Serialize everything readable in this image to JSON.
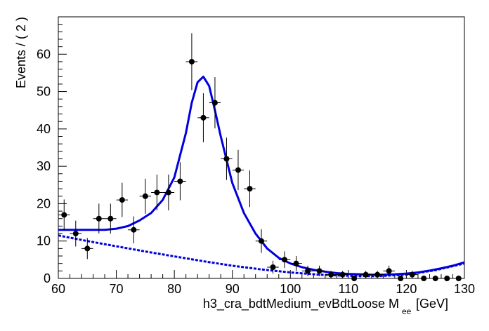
{
  "chart_data": {
    "type": "scatter",
    "title": "",
    "xlabel_main": "h3_cra_bdtMedium_evBdtLoose  M",
    "xlabel_subscript": "ee",
    "xlabel_unit": "[GeV]",
    "ylabel": "Events / ( 2 )",
    "xlim": [
      60,
      130
    ],
    "ylim": [
      0,
      70
    ],
    "x_ticks": [
      "60",
      "70",
      "80",
      "90",
      "100",
      "110",
      "120",
      "130"
    ],
    "y_ticks": [
      "0",
      "10",
      "20",
      "30",
      "40",
      "50",
      "60"
    ],
    "bin_width": 2,
    "grid": false,
    "legend": "none",
    "marker_color": "#000000",
    "fit_color": "#0000dd",
    "series": [
      {
        "name": "data",
        "kind": "points_with_errors",
        "x": [
          61,
          63,
          65,
          67,
          69,
          71,
          73,
          75,
          77,
          79,
          81,
          83,
          85,
          87,
          89,
          91,
          93,
          95,
          97,
          99,
          101,
          103,
          105,
          107,
          109,
          111,
          113,
          115,
          117,
          119,
          121,
          123,
          125,
          127,
          129
        ],
        "y": [
          17,
          12,
          8,
          16,
          16,
          21,
          13,
          22,
          23,
          23,
          26,
          58,
          43,
          47,
          32,
          29,
          24,
          10,
          3,
          5,
          4,
          2,
          2,
          1,
          1,
          0,
          1,
          1,
          2,
          0,
          1,
          0,
          0,
          0,
          0
        ]
      },
      {
        "name": "total fit",
        "kind": "curve",
        "style": "solid",
        "x": [
          60,
          62,
          64,
          66,
          68,
          70,
          72,
          74,
          76,
          78,
          80,
          82,
          83,
          84,
          85,
          86,
          87,
          88,
          90,
          92,
          94,
          96,
          98,
          100,
          102,
          104,
          106,
          108,
          110,
          112,
          114,
          116,
          118,
          120,
          122,
          124,
          126,
          128,
          130
        ],
        "y": [
          13,
          13,
          13,
          13,
          13,
          13.3,
          14,
          15.5,
          17.5,
          21,
          27,
          39,
          47,
          52.5,
          54,
          51.5,
          45,
          38,
          25.5,
          17.5,
          12,
          8,
          5.5,
          4,
          3,
          2.3,
          1.8,
          1.4,
          1.2,
          1.1,
          1.0,
          1.0,
          1.1,
          1.3,
          1.6,
          2.1,
          2.7,
          3.4,
          4.3
        ]
      },
      {
        "name": "background",
        "kind": "curve",
        "style": "dashed",
        "x": [
          60,
          65,
          70,
          75,
          80,
          85,
          90,
          95,
          100,
          105,
          110,
          115,
          120,
          125,
          130
        ],
        "y": [
          11.5,
          10,
          8.6,
          7.2,
          5.9,
          4.6,
          3.4,
          2.4,
          1.6,
          1.0,
          0.7,
          0.6,
          1.0,
          2.2,
          4.0
        ]
      }
    ]
  }
}
